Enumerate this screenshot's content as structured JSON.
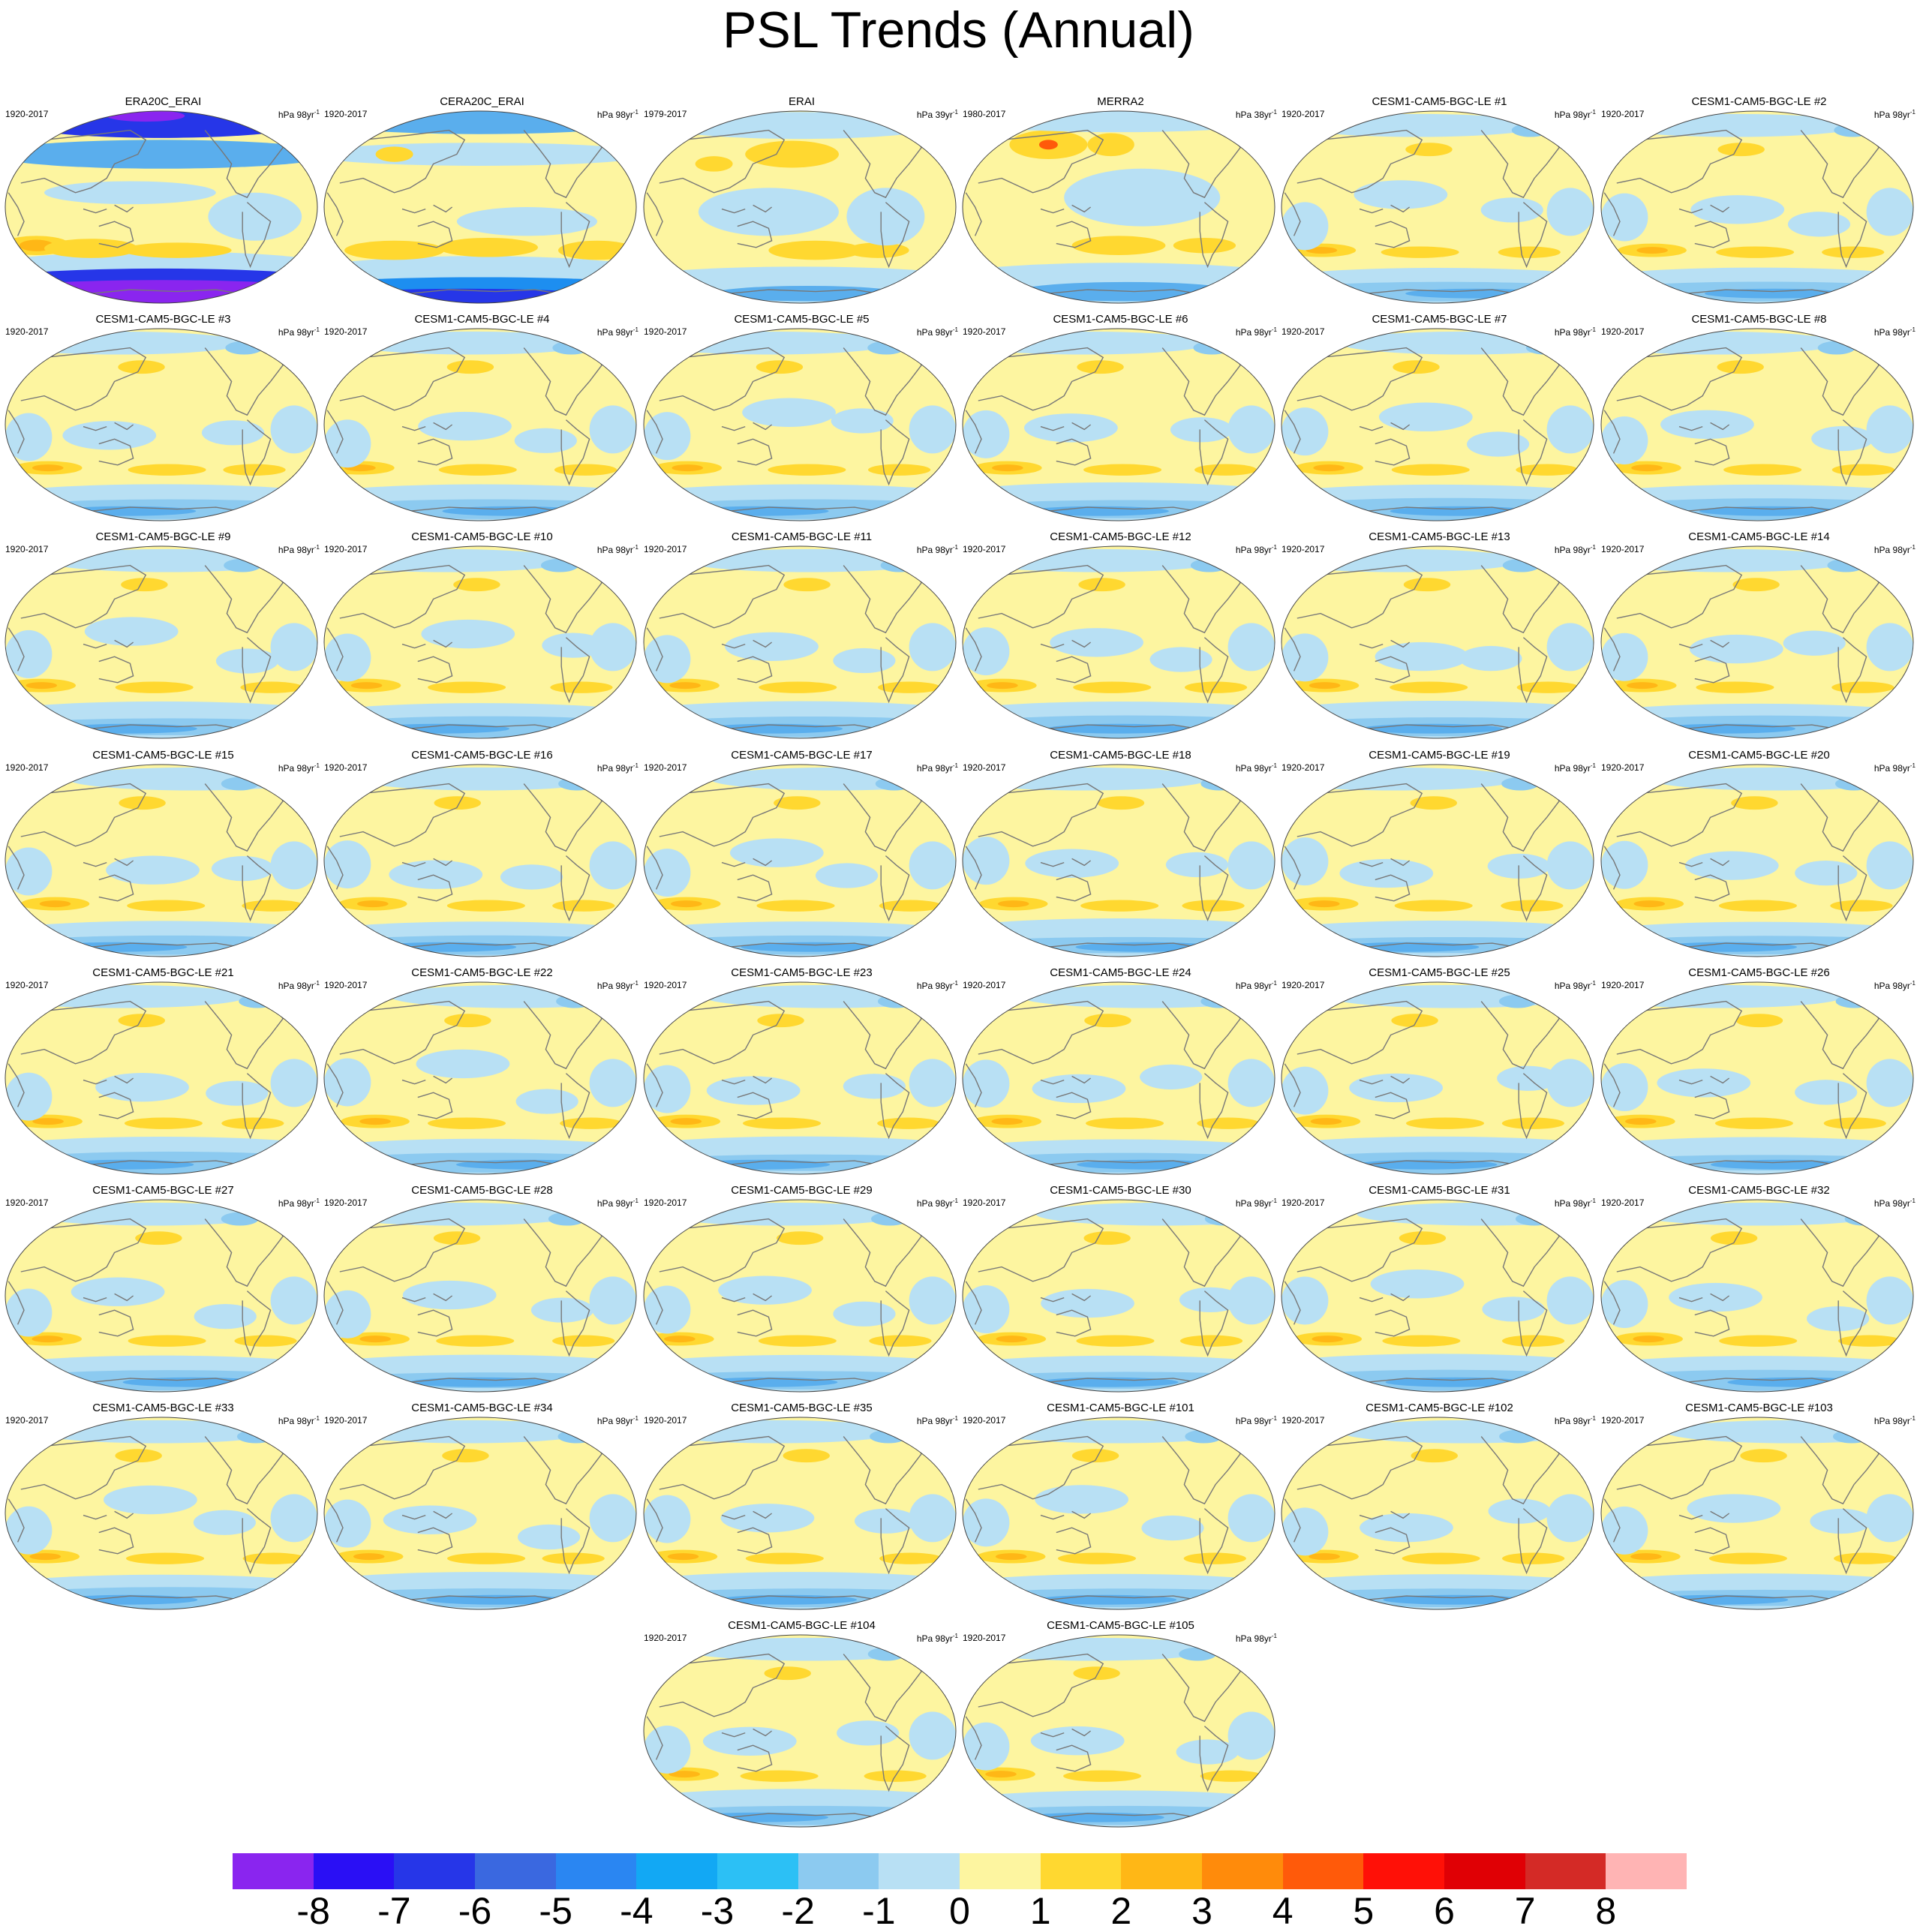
{
  "title": "PSL Trends (Annual)",
  "panels": [
    {
      "name": "ERA20C_ERAI",
      "years": "1920-2017",
      "units": "hPa 98yr",
      "exp": "-1",
      "variant": "era20c"
    },
    {
      "name": "CERA20C_ERAI",
      "years": "1920-2017",
      "units": "hPa 98yr",
      "exp": "-1",
      "variant": "cera20c"
    },
    {
      "name": "ERAI",
      "years": "1979-2017",
      "units": "hPa 39yr",
      "exp": "-1",
      "variant": "erai"
    },
    {
      "name": "MERRA2",
      "years": "1980-2017",
      "units": "hPa 38yr",
      "exp": "-1",
      "variant": "merra2"
    },
    {
      "name": "CESM1-CAM5-BGC-LE #1",
      "years": "1920-2017",
      "units": "hPa 98yr",
      "exp": "-1",
      "variant": "le"
    },
    {
      "name": "CESM1-CAM5-BGC-LE #2",
      "years": "1920-2017",
      "units": "hPa 98yr",
      "exp": "-1",
      "variant": "le"
    },
    {
      "name": "CESM1-CAM5-BGC-LE #3",
      "years": "1920-2017",
      "units": "hPa 98yr",
      "exp": "-1",
      "variant": "le"
    },
    {
      "name": "CESM1-CAM5-BGC-LE #4",
      "years": "1920-2017",
      "units": "hPa 98yr",
      "exp": "-1",
      "variant": "le"
    },
    {
      "name": "CESM1-CAM5-BGC-LE #5",
      "years": "1920-2017",
      "units": "hPa 98yr",
      "exp": "-1",
      "variant": "le"
    },
    {
      "name": "CESM1-CAM5-BGC-LE #6",
      "years": "1920-2017",
      "units": "hPa 98yr",
      "exp": "-1",
      "variant": "le"
    },
    {
      "name": "CESM1-CAM5-BGC-LE #7",
      "years": "1920-2017",
      "units": "hPa 98yr",
      "exp": "-1",
      "variant": "le"
    },
    {
      "name": "CESM1-CAM5-BGC-LE #8",
      "years": "1920-2017",
      "units": "hPa 98yr",
      "exp": "-1",
      "variant": "le"
    },
    {
      "name": "CESM1-CAM5-BGC-LE #9",
      "years": "1920-2017",
      "units": "hPa 98yr",
      "exp": "-1",
      "variant": "le"
    },
    {
      "name": "CESM1-CAM5-BGC-LE #10",
      "years": "1920-2017",
      "units": "hPa 98yr",
      "exp": "-1",
      "variant": "le"
    },
    {
      "name": "CESM1-CAM5-BGC-LE #11",
      "years": "1920-2017",
      "units": "hPa 98yr",
      "exp": "-1",
      "variant": "le"
    },
    {
      "name": "CESM1-CAM5-BGC-LE #12",
      "years": "1920-2017",
      "units": "hPa 98yr",
      "exp": "-1",
      "variant": "le"
    },
    {
      "name": "CESM1-CAM5-BGC-LE #13",
      "years": "1920-2017",
      "units": "hPa 98yr",
      "exp": "-1",
      "variant": "le"
    },
    {
      "name": "CESM1-CAM5-BGC-LE #14",
      "years": "1920-2017",
      "units": "hPa 98yr",
      "exp": "-1",
      "variant": "le"
    },
    {
      "name": "CESM1-CAM5-BGC-LE #15",
      "years": "1920-2017",
      "units": "hPa 98yr",
      "exp": "-1",
      "variant": "le"
    },
    {
      "name": "CESM1-CAM5-BGC-LE #16",
      "years": "1920-2017",
      "units": "hPa 98yr",
      "exp": "-1",
      "variant": "le"
    },
    {
      "name": "CESM1-CAM5-BGC-LE #17",
      "years": "1920-2017",
      "units": "hPa 98yr",
      "exp": "-1",
      "variant": "le"
    },
    {
      "name": "CESM1-CAM5-BGC-LE #18",
      "years": "1920-2017",
      "units": "hPa 98yr",
      "exp": "-1",
      "variant": "le"
    },
    {
      "name": "CESM1-CAM5-BGC-LE #19",
      "years": "1920-2017",
      "units": "hPa 98yr",
      "exp": "-1",
      "variant": "le"
    },
    {
      "name": "CESM1-CAM5-BGC-LE #20",
      "years": "1920-2017",
      "units": "hPa 98yr",
      "exp": "-1",
      "variant": "le"
    },
    {
      "name": "CESM1-CAM5-BGC-LE #21",
      "years": "1920-2017",
      "units": "hPa 98yr",
      "exp": "-1",
      "variant": "le"
    },
    {
      "name": "CESM1-CAM5-BGC-LE #22",
      "years": "1920-2017",
      "units": "hPa 98yr",
      "exp": "-1",
      "variant": "le"
    },
    {
      "name": "CESM1-CAM5-BGC-LE #23",
      "years": "1920-2017",
      "units": "hPa 98yr",
      "exp": "-1",
      "variant": "le"
    },
    {
      "name": "CESM1-CAM5-BGC-LE #24",
      "years": "1920-2017",
      "units": "hPa 98yr",
      "exp": "-1",
      "variant": "le"
    },
    {
      "name": "CESM1-CAM5-BGC-LE #25",
      "years": "1920-2017",
      "units": "hPa 98yr",
      "exp": "-1",
      "variant": "le"
    },
    {
      "name": "CESM1-CAM5-BGC-LE #26",
      "years": "1920-2017",
      "units": "hPa 98yr",
      "exp": "-1",
      "variant": "le"
    },
    {
      "name": "CESM1-CAM5-BGC-LE #27",
      "years": "1920-2017",
      "units": "hPa 98yr",
      "exp": "-1",
      "variant": "le"
    },
    {
      "name": "CESM1-CAM5-BGC-LE #28",
      "years": "1920-2017",
      "units": "hPa 98yr",
      "exp": "-1",
      "variant": "le"
    },
    {
      "name": "CESM1-CAM5-BGC-LE #29",
      "years": "1920-2017",
      "units": "hPa 98yr",
      "exp": "-1",
      "variant": "le"
    },
    {
      "name": "CESM1-CAM5-BGC-LE #30",
      "years": "1920-2017",
      "units": "hPa 98yr",
      "exp": "-1",
      "variant": "le"
    },
    {
      "name": "CESM1-CAM5-BGC-LE #31",
      "years": "1920-2017",
      "units": "hPa 98yr",
      "exp": "-1",
      "variant": "le"
    },
    {
      "name": "CESM1-CAM5-BGC-LE #32",
      "years": "1920-2017",
      "units": "hPa 98yr",
      "exp": "-1",
      "variant": "le"
    },
    {
      "name": "CESM1-CAM5-BGC-LE #33",
      "years": "1920-2017",
      "units": "hPa 98yr",
      "exp": "-1",
      "variant": "le"
    },
    {
      "name": "CESM1-CAM5-BGC-LE #34",
      "years": "1920-2017",
      "units": "hPa 98yr",
      "exp": "-1",
      "variant": "le"
    },
    {
      "name": "CESM1-CAM5-BGC-LE #35",
      "years": "1920-2017",
      "units": "hPa 98yr",
      "exp": "-1",
      "variant": "le"
    },
    {
      "name": "CESM1-CAM5-BGC-LE #101",
      "years": "1920-2017",
      "units": "hPa 98yr",
      "exp": "-1",
      "variant": "le"
    },
    {
      "name": "CESM1-CAM5-BGC-LE #102",
      "years": "1920-2017",
      "units": "hPa 98yr",
      "exp": "-1",
      "variant": "le"
    },
    {
      "name": "CESM1-CAM5-BGC-LE #103",
      "years": "1920-2017",
      "units": "hPa 98yr",
      "exp": "-1",
      "variant": "le"
    },
    {
      "name": "CESM1-CAM5-BGC-LE #104",
      "years": "1920-2017",
      "units": "hPa 98yr",
      "exp": "-1",
      "variant": "le"
    },
    {
      "name": "CESM1-CAM5-BGC-LE #105",
      "years": "1920-2017",
      "units": "hPa 98yr",
      "exp": "-1",
      "variant": "le"
    }
  ],
  "colorbar": {
    "colors": [
      "#8a25ef",
      "#2a0ff5",
      "#2636e8",
      "#3a68e0",
      "#2a86f2",
      "#12a8f4",
      "#2cc0f5",
      "#8ccaf0",
      "#b8e0f4",
      "#fdf5a0",
      "#ffd830",
      "#ffb716",
      "#ff8b0b",
      "#ff5a0a",
      "#ff1007",
      "#e00005",
      "#d42a26",
      "#ffb4b4"
    ],
    "labels": [
      "-8",
      "-7",
      "-6",
      "-5",
      "-4",
      "-3",
      "-2",
      "-1",
      "0",
      "1",
      "2",
      "3",
      "4",
      "5",
      "6",
      "7",
      "8"
    ]
  },
  "palette": {
    "yellow": "#fdf5a0",
    "lightblue": "#b8e0f4",
    "midblue": "#8ccaf0",
    "blue": "#5aaeed",
    "deepblue": "#1d8ef0",
    "navy": "#2636e8",
    "purple": "#8a25ef",
    "gold": "#ffd830",
    "orange": "#ffb716",
    "red": "#ff5a0a",
    "coast": "#777777"
  }
}
